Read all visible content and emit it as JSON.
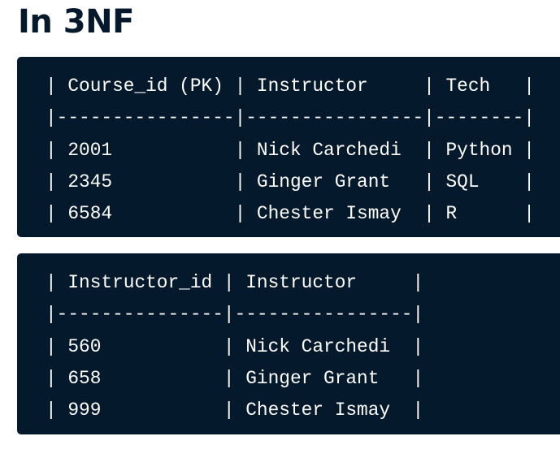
{
  "title": "In 3NF",
  "code_blocks": [
    {
      "lines": [
        "| Course_id (PK) | Instructor     | Tech   |",
        "|----------------|----------------|--------|",
        "| 2001           | Nick Carchedi  | Python |",
        "| 2345           | Ginger Grant   | SQL    |",
        "| 6584           | Chester Ismay  | R      |"
      ]
    },
    {
      "lines": [
        "| Instructor_id | Instructor     |",
        "|---------------|----------------|",
        "| 560           | Nick Carchedi  |",
        "| 658           | Ginger Grant   |",
        "| 999           | Chester Ismay  |"
      ]
    }
  ],
  "colors": {
    "background": "#ffffff",
    "code_background": "#05192d",
    "title": "#05192d",
    "code_text": "#ffffff"
  }
}
